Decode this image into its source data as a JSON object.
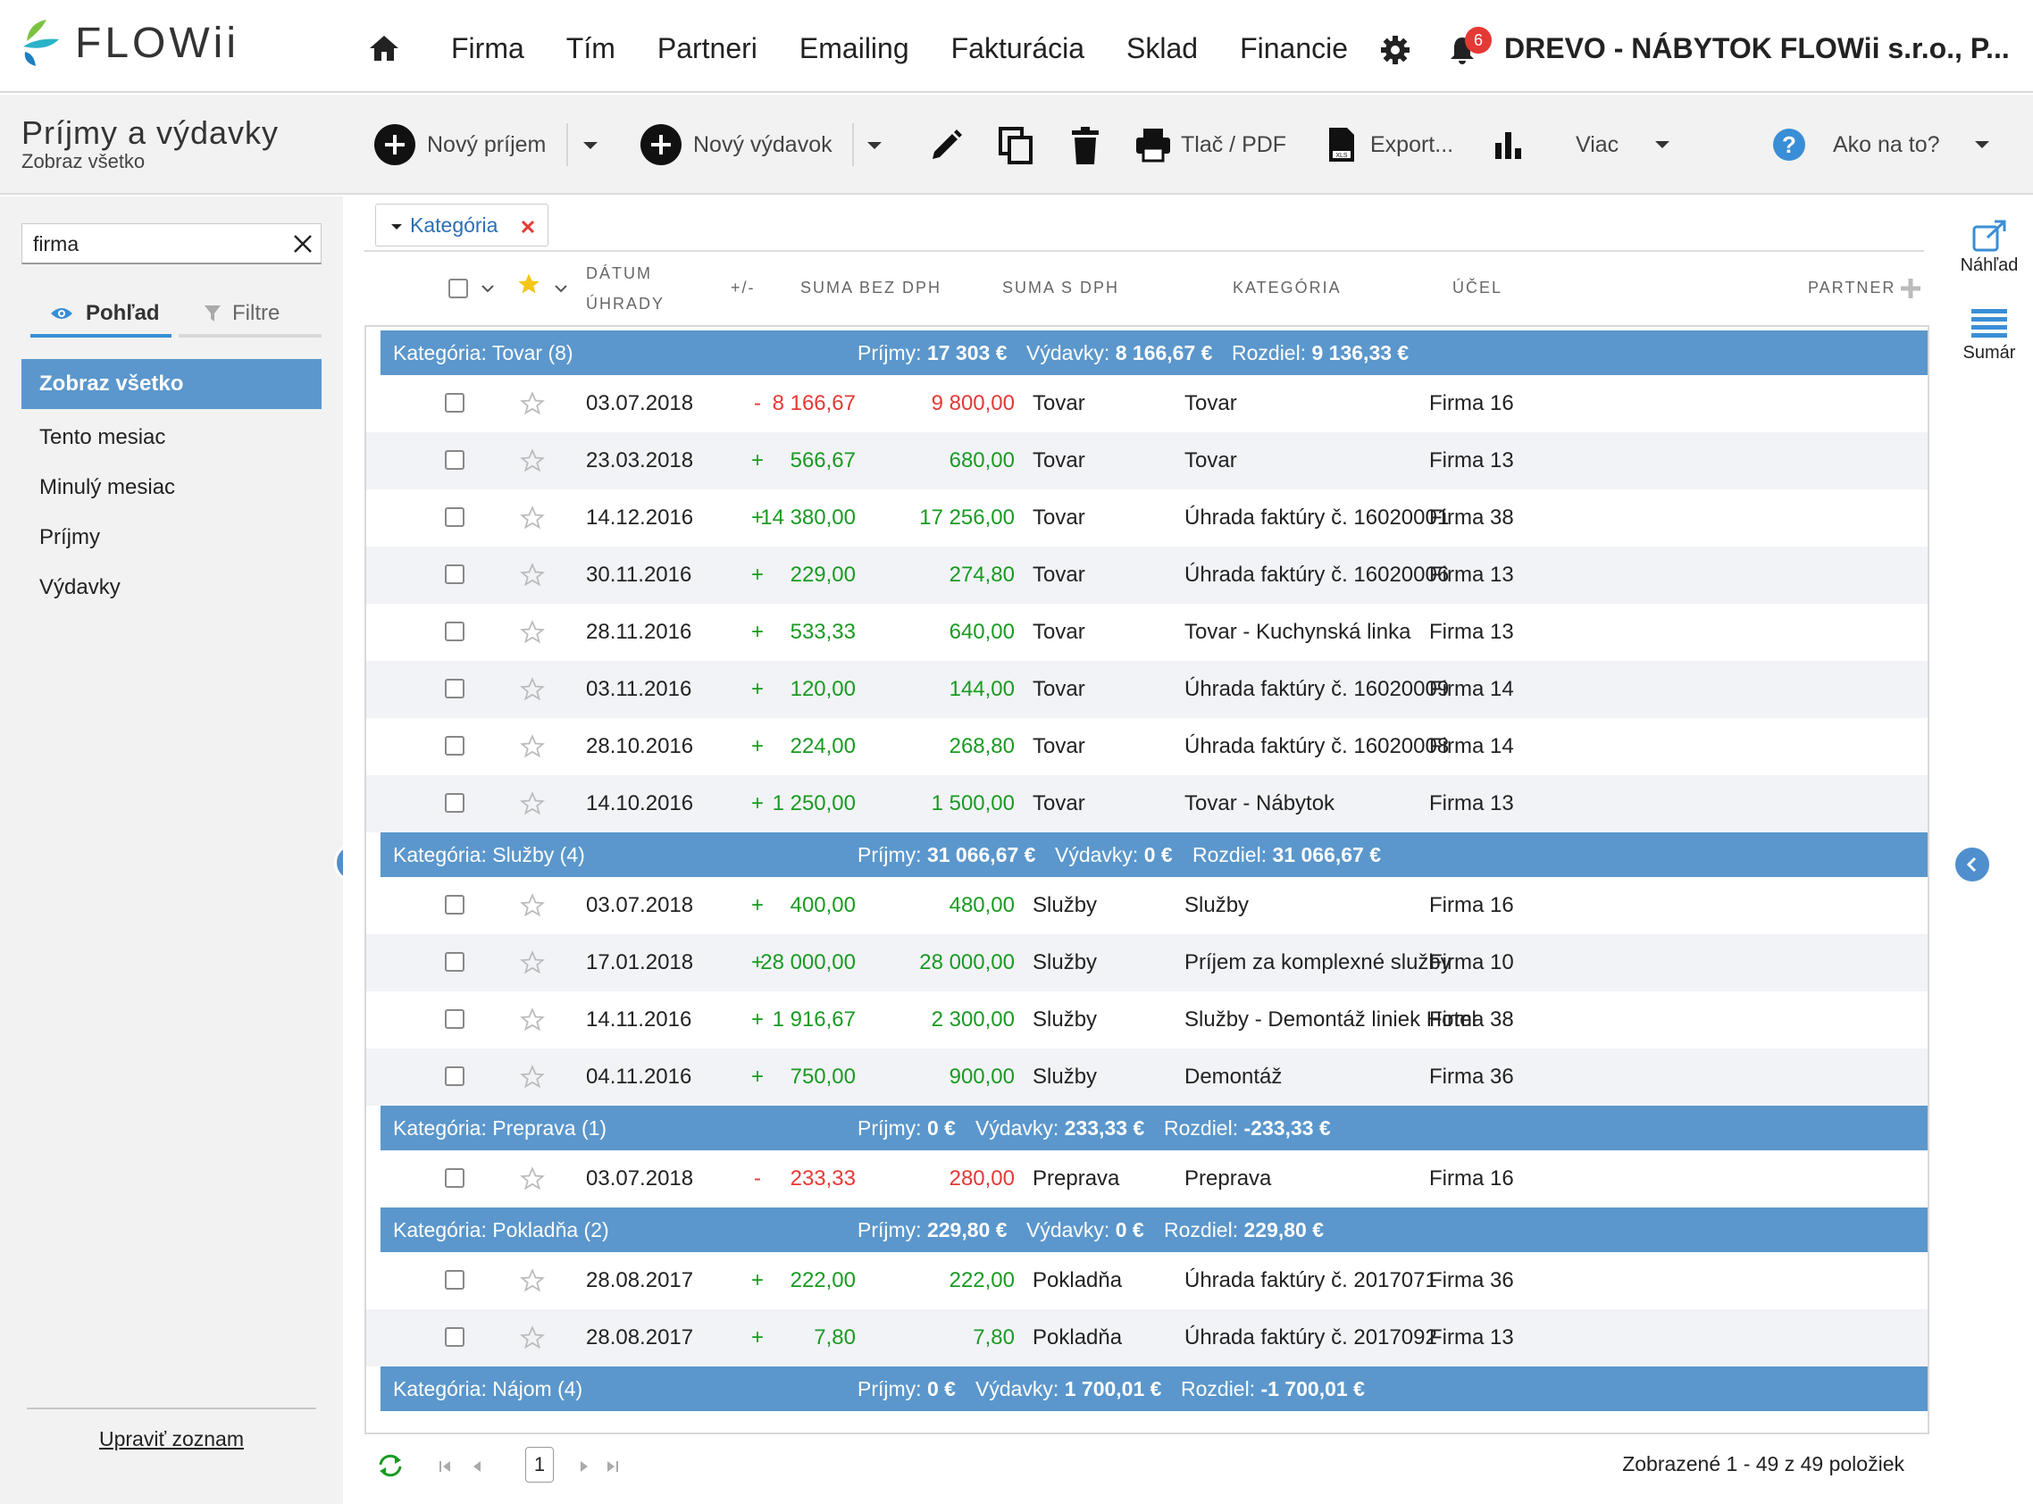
{
  "app": {
    "logo_text": "FLOWii",
    "notifications": "6",
    "company": "DREVO - NÁBYTOK FLOWii s.r.o., P..."
  },
  "nav": [
    "Firma",
    "Tím",
    "Partneri",
    "Emailing",
    "Fakturácia",
    "Sklad",
    "Financie"
  ],
  "page": {
    "title": "Príjmy a výdavky",
    "subtitle": "Zobraz všetko"
  },
  "toolbar": {
    "new_income": "Nový príjem",
    "new_expense": "Nový výdavok",
    "print": "Tlač / PDF",
    "export": "Export...",
    "more": "Viac",
    "help": "Ako na to?"
  },
  "sidebar": {
    "search_value": "firma",
    "tab_view": "Pohľad",
    "tab_filters": "Filtre",
    "items": [
      "Zobraz všetko",
      "Tento mesiac",
      "Minulý mesiac",
      "Príjmy",
      "Výdavky"
    ],
    "edit_list": "Upraviť zoznam"
  },
  "filter_chip": "Kategória",
  "columns": {
    "date_line1": "DÁTUM",
    "date_line2": "ÚHRADY",
    "sign": "+/-",
    "sum_wo_vat": "SUMA BEZ DPH",
    "sum_w_vat": "SUMA S DPH",
    "category": "KATEGÓRIA",
    "purpose": "ÚČEL",
    "partner": "PARTNER"
  },
  "right_panel": {
    "preview": "Náhľad",
    "summary": "Sumár"
  },
  "groups": [
    {
      "label": "Kategória: Tovar (8)",
      "inc_label": "Príjmy:",
      "inc": "17 303 €",
      "exp_label": "Výdavky:",
      "exp": "8 166,67 €",
      "diff_label": "Rozdiel:",
      "diff": "9 136,33 €",
      "rows": [
        {
          "date": "03.07.2018",
          "sign": "-",
          "net": "8 166,67",
          "gross": "9 800,00",
          "category": "Tovar",
          "purpose": "Tovar",
          "partner": "Firma 16"
        },
        {
          "date": "23.03.2018",
          "sign": "+",
          "net": "566,67",
          "gross": "680,00",
          "category": "Tovar",
          "purpose": "Tovar",
          "partner": "Firma 13"
        },
        {
          "date": "14.12.2016",
          "sign": "+",
          "net": "14 380,00",
          "gross": "17 256,00",
          "category": "Tovar",
          "purpose": "Úhrada faktúry č. 16020001",
          "partner": "Firma 38"
        },
        {
          "date": "30.11.2016",
          "sign": "+",
          "net": "229,00",
          "gross": "274,80",
          "category": "Tovar",
          "purpose": "Úhrada faktúry č. 16020006",
          "partner": "Firma 13"
        },
        {
          "date": "28.11.2016",
          "sign": "+",
          "net": "533,33",
          "gross": "640,00",
          "category": "Tovar",
          "purpose": "Tovar - Kuchynská linka",
          "partner": "Firma 13"
        },
        {
          "date": "03.11.2016",
          "sign": "+",
          "net": "120,00",
          "gross": "144,00",
          "category": "Tovar",
          "purpose": "Úhrada faktúry č. 16020009",
          "partner": "Firma 14"
        },
        {
          "date": "28.10.2016",
          "sign": "+",
          "net": "224,00",
          "gross": "268,80",
          "category": "Tovar",
          "purpose": "Úhrada faktúry č. 16020008",
          "partner": "Firma 14"
        },
        {
          "date": "14.10.2016",
          "sign": "+",
          "net": "1 250,00",
          "gross": "1 500,00",
          "category": "Tovar",
          "purpose": "Tovar - Nábytok",
          "partner": "Firma 13"
        }
      ]
    },
    {
      "label": "Kategória: Služby (4)",
      "inc_label": "Príjmy:",
      "inc": "31 066,67 €",
      "exp_label": "Výdavky:",
      "exp": "0 €",
      "diff_label": "Rozdiel:",
      "diff": "31 066,67 €",
      "rows": [
        {
          "date": "03.07.2018",
          "sign": "+",
          "net": "400,00",
          "gross": "480,00",
          "category": "Služby",
          "purpose": "Služby",
          "partner": "Firma 16"
        },
        {
          "date": "17.01.2018",
          "sign": "+",
          "net": "28 000,00",
          "gross": "28 000,00",
          "category": "Služby",
          "purpose": "Príjem za komplexné služby",
          "partner": "Firma 10"
        },
        {
          "date": "14.11.2016",
          "sign": "+",
          "net": "1 916,67",
          "gross": "2 300,00",
          "category": "Služby",
          "purpose": "Služby - Demontáž liniek Hotel",
          "partner": "Firma 38"
        },
        {
          "date": "04.11.2016",
          "sign": "+",
          "net": "750,00",
          "gross": "900,00",
          "category": "Služby",
          "purpose": "Demontáž",
          "partner": "Firma 36"
        }
      ]
    },
    {
      "label": "Kategória: Preprava (1)",
      "inc_label": "Príjmy:",
      "inc": "0 €",
      "exp_label": "Výdavky:",
      "exp": "233,33 €",
      "diff_label": "Rozdiel:",
      "diff": "-233,33 €",
      "rows": [
        {
          "date": "03.07.2018",
          "sign": "-",
          "net": "233,33",
          "gross": "280,00",
          "category": "Preprava",
          "purpose": "Preprava",
          "partner": "Firma 16"
        }
      ]
    },
    {
      "label": "Kategória: Pokladňa (2)",
      "inc_label": "Príjmy:",
      "inc": "229,80 €",
      "exp_label": "Výdavky:",
      "exp": "0 €",
      "diff_label": "Rozdiel:",
      "diff": "229,80 €",
      "rows": [
        {
          "date": "28.08.2017",
          "sign": "+",
          "net": "222,00",
          "gross": "222,00",
          "category": "Pokladňa",
          "purpose": "Úhrada faktúry č. 2017071",
          "partner": "Firma 36"
        },
        {
          "date": "28.08.2017",
          "sign": "+",
          "net": "7,80",
          "gross": "7,80",
          "category": "Pokladňa",
          "purpose": "Úhrada faktúry č. 2017092",
          "partner": "Firma 13"
        }
      ]
    },
    {
      "label": "Kategória: Nájom (4)",
      "inc_label": "Príjmy:",
      "inc": "0 €",
      "exp_label": "Výdavky:",
      "exp": "1 700,01 €",
      "diff_label": "Rozdiel:",
      "diff": "-1 700,01 €",
      "rows": []
    }
  ],
  "pager": {
    "page": "1",
    "info": "Zobrazené 1 - 49 z 49 položiek"
  },
  "colors": {
    "accent": "#5b97cc",
    "positive": "#1a9a22",
    "negative": "#e53935"
  }
}
